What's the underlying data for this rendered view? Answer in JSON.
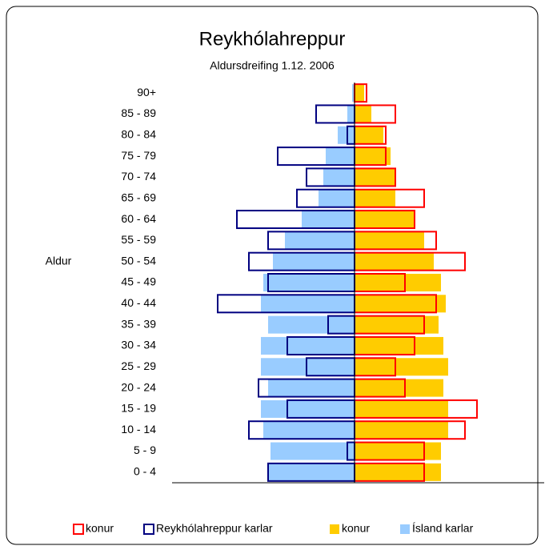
{
  "chart_data": {
    "type": "pyramid",
    "title": "Reykhólahreppur",
    "subtitle": "Aldursdreifing  1.12. 2006",
    "y_label": "Aldur",
    "categories": [
      "0 - 4",
      "5 - 9",
      "10 - 14",
      "15 - 19",
      "20 - 24",
      "25 - 29",
      "30 - 34",
      "35 - 39",
      "40 - 44",
      "45 - 49",
      "50 - 54",
      "55 - 59",
      "60 - 64",
      "65 - 69",
      "70 - 74",
      "75 - 79",
      "80 - 84",
      "85 - 89",
      "90+"
    ],
    "xlim": [
      -7.6,
      7.9
    ],
    "series": [
      {
        "name": "konur",
        "style": "outline",
        "color": "#ff0000",
        "values": [
          2.9,
          2.9,
          4.6,
          5.1,
          2.1,
          1.7,
          2.5,
          2.9,
          3.4,
          2.1,
          4.6,
          3.4,
          2.5,
          2.9,
          1.7,
          1.3,
          1.3,
          1.7,
          0.5
        ]
      },
      {
        "name": "Reykhólahreppur karlar",
        "style": "outline",
        "color": "#000080",
        "values": [
          -3.6,
          -0.3,
          -4.4,
          -2.8,
          -4.0,
          -2.0,
          -2.8,
          -1.1,
          -5.7,
          -3.6,
          -4.4,
          -3.6,
          -4.9,
          -2.4,
          -2.0,
          -3.2,
          -0.3,
          -1.6,
          0
        ]
      },
      {
        "name": "konur",
        "style": "fill",
        "color": "#ffcc00",
        "values": [
          3.6,
          3.6,
          3.9,
          3.9,
          3.7,
          3.9,
          3.7,
          3.5,
          3.8,
          3.6,
          3.3,
          2.9,
          2.5,
          1.7,
          1.7,
          1.5,
          1.2,
          0.7,
          0.4
        ]
      },
      {
        "name": "Ísland karlar",
        "style": "fill",
        "color": "#99ccff",
        "values": [
          -3.6,
          -3.5,
          -3.8,
          -3.9,
          -3.6,
          -3.9,
          -3.9,
          -3.6,
          -3.9,
          -3.8,
          -3.4,
          -2.9,
          -2.2,
          -1.5,
          -1.3,
          -1.2,
          -0.7,
          -0.3,
          -0.1
        ]
      }
    ]
  }
}
